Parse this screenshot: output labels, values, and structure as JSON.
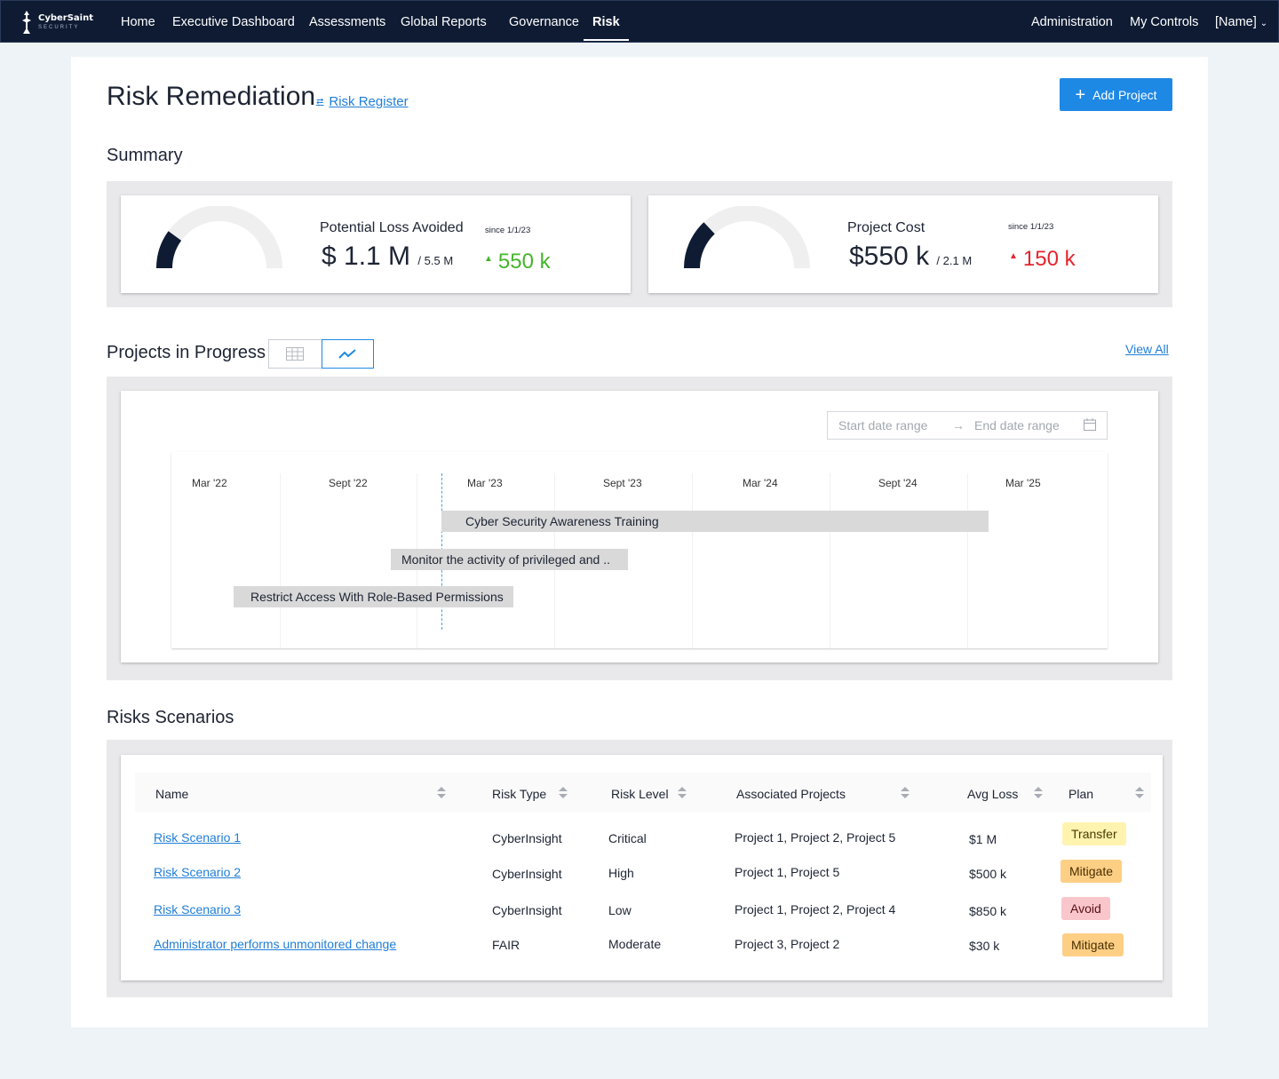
{
  "brand": {
    "name": "CyberSaint",
    "tagline": "SECURITY"
  },
  "nav": {
    "items": [
      "Home",
      "Executive Dashboard",
      "Assessments",
      "Global Reports",
      "Governance",
      "Risk"
    ],
    "active": "Risk",
    "right": [
      "Administration",
      "My Controls",
      "[Name]"
    ]
  },
  "page": {
    "title": "Risk Remediation",
    "register_link": "Risk Register",
    "add_button": "Add Project"
  },
  "summary": {
    "title": "Summary",
    "cards": [
      {
        "label": "Potential Loss Avoided",
        "value": "$ 1.1 M",
        "total": "/ 5.5 M",
        "since": "since 1/1/23",
        "delta": "550 k",
        "progress": 0.2
      },
      {
        "label": "Project Cost",
        "value": "$550 k",
        "total": "/ 2.1 M",
        "since": "since 1/1/23",
        "delta": "150 k",
        "progress": 0.26
      }
    ],
    "colors": {
      "gauge_fill": "#0e1b33",
      "gauge_track": "#efefef",
      "delta_green": "#44b52a",
      "delta_red": "#e5242b"
    }
  },
  "projects": {
    "title": "Projects in Progress",
    "view_all": "View All",
    "start_placeholder": "Start date range",
    "end_placeholder": "End date range",
    "ticks": [
      "Mar '22",
      "Sept '22",
      "Mar '23",
      "Sept '23",
      "Mar '24",
      "Sept '24",
      "Mar '25"
    ],
    "bars": [
      {
        "label": "Cyber Security Awareness Training"
      },
      {
        "label": "Monitor the activity of privileged and .."
      },
      {
        "label": "Restrict Access With Role-Based Permissions"
      }
    ]
  },
  "risks": {
    "title": "Risks Scenarios",
    "columns": [
      "Name",
      "Risk Type",
      "Risk Level",
      "Associated Projects",
      "Avg Loss",
      "Plan"
    ],
    "rows": [
      {
        "name": "Risk Scenario 1",
        "type": "CyberInsight",
        "level": "Critical",
        "projects": "Project 1, Project 2, Project 5",
        "loss": "$1 M",
        "plan": "Transfer"
      },
      {
        "name": "Risk Scenario 2",
        "type": "CyberInsight",
        "level": "High",
        "projects": "Project 1, Project 5",
        "loss": "$500 k",
        "plan": "Mitigate"
      },
      {
        "name": "Risk Scenario 3",
        "type": "CyberInsight",
        "level": "Low",
        "projects": "Project 1, Project 2, Project 4",
        "loss": "$850 k",
        "plan": "Avoid"
      },
      {
        "name": "Administrator performs unmonitored change",
        "type": "FAIR",
        "level": "Moderate",
        "projects": "Project 3, Project 2",
        "loss": "$30 k",
        "plan": "Mitigate"
      }
    ],
    "plan_colors": {
      "Transfer": {
        "bg": "#fff3b0",
        "fg": "#4a3d00"
      },
      "Mitigate": {
        "bg": "#fdcf85",
        "fg": "#4a2e00"
      },
      "Avoid": {
        "bg": "#f9c6cb",
        "fg": "#5a1017"
      }
    }
  }
}
